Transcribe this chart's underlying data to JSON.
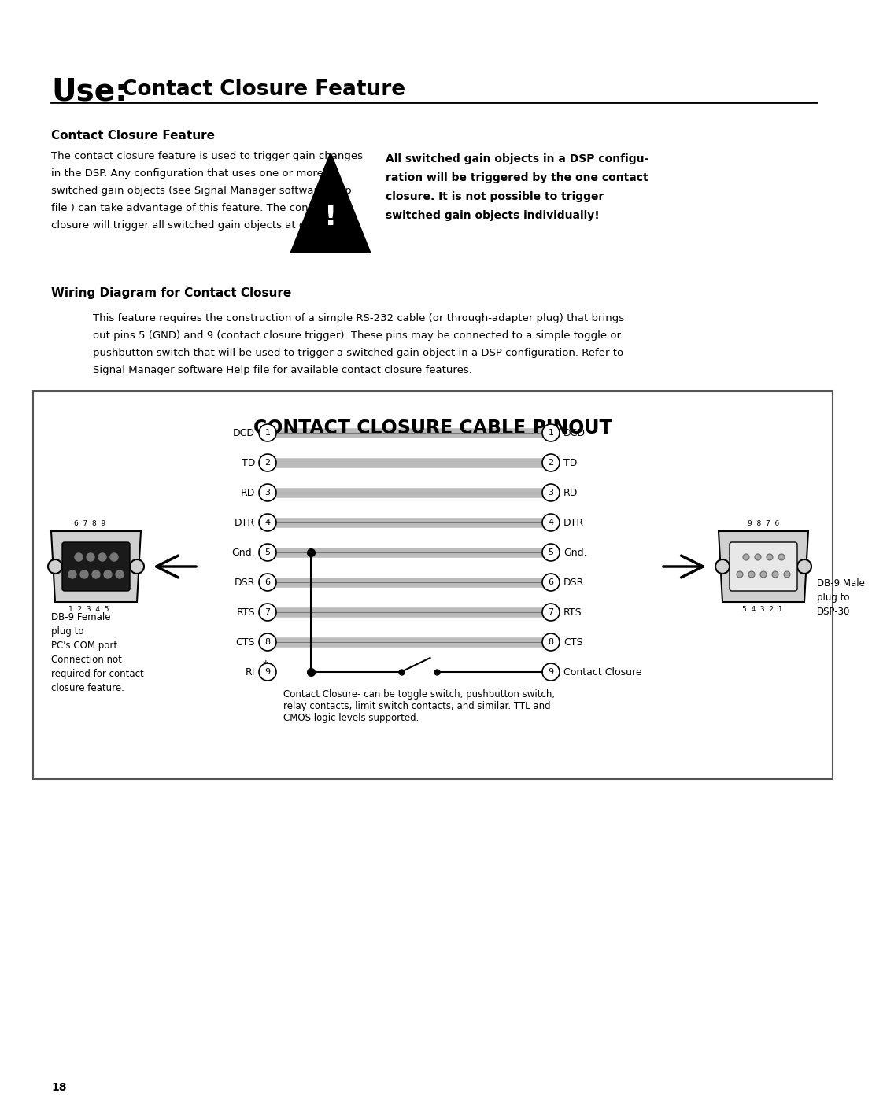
{
  "bg_color": "#ffffff",
  "title_use": "Use:",
  "title_rest": "Contact Closure Feature",
  "section1_title": "Contact Closure Feature",
  "section1_body_lines": [
    "The contact closure feature is used to trigger gain changes",
    "in the DSP. Any configuration that uses one or more",
    "switched gain objects (see Signal Manager software Help",
    "file ) can take advantage of this feature. The contact",
    "closure will trigger all switched gain objects at once."
  ],
  "warning_text_lines": [
    "All switched gain objects in a DSP configu-",
    "ration will be triggered by the one contact",
    "closure. It is not possible to trigger",
    "switched gain objects individually!"
  ],
  "section2_title": "Wiring Diagram for Contact Closure",
  "section2_body_lines": [
    "This feature requires the construction of a simple RS-232 cable (or through-adapter plug) that brings",
    "out pins 5 (GND) and 9 (contact closure trigger). These pins may be connected to a simple toggle or",
    "pushbutton switch that will be used to trigger a switched gain object in a DSP configuration. Refer to",
    "Signal Manager software Help file for available contact closure features."
  ],
  "diagram_title": "CONTACT CLOSURE CABLE PINOUT",
  "pins_left": [
    "DCD",
    "TD",
    "RD",
    "DTR",
    "Gnd.",
    "DSR",
    "RTS",
    "CTS",
    "RI"
  ],
  "pin_numbers": [
    1,
    2,
    3,
    4,
    5,
    6,
    7,
    8,
    9
  ],
  "pins_right": [
    "DCD",
    "TD",
    "RD",
    "DTR",
    "Gnd.",
    "DSR",
    "RTS",
    "CTS",
    "Contact Closure"
  ],
  "left_connector_label": "DB-9 Female\nplug to\nPC's COM port.\nConnection not\nrequired for contact\nclosure feature.",
  "left_connector_top_pins": "6  7  8  9",
  "left_connector_bot_pins": "1  2  3  4  5",
  "right_connector_label": "DB-9 Male\nplug to\nDSP-30",
  "right_connector_top_pins": "9  8  7  6",
  "right_connector_bot_pins": "5  4  3  2  1",
  "footnote_lines": [
    "Contact Closure- can be toggle switch, pushbutton switch,",
    "relay contacts, limit switch contacts, and similar. TTL and",
    "CMOS logic levels supported."
  ],
  "page_number": "18"
}
